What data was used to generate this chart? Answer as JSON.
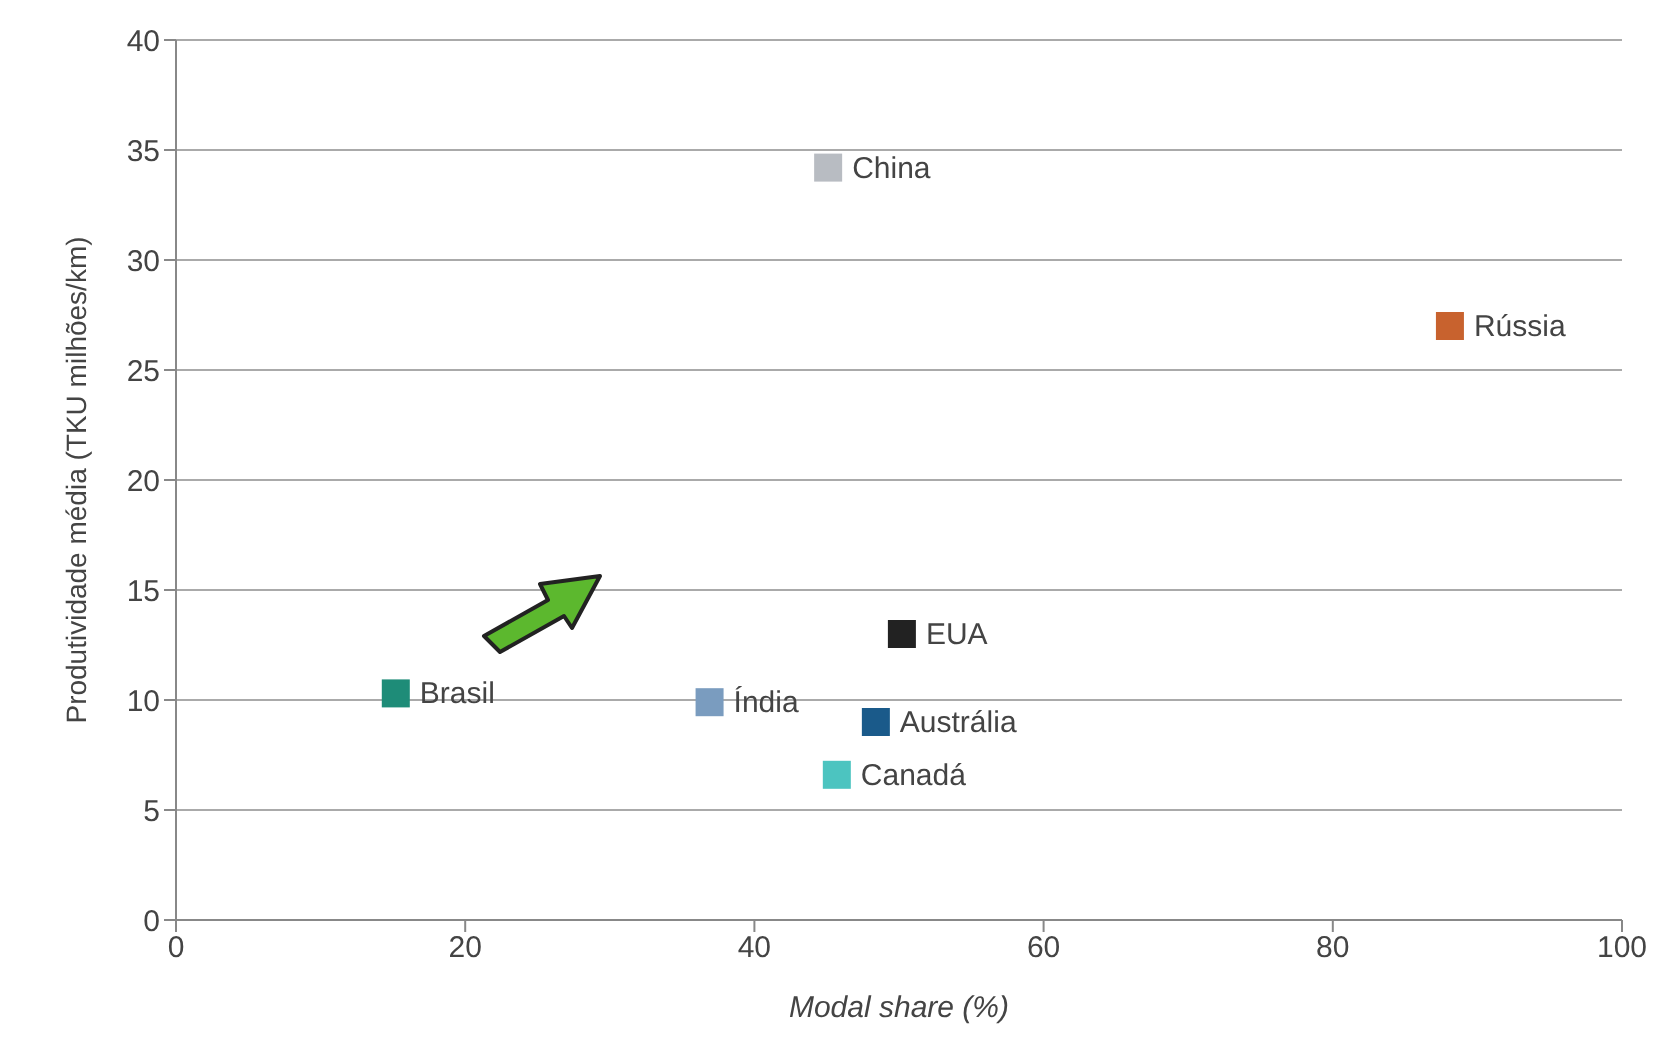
{
  "chart_data": {
    "type": "scatter",
    "xlabel": "Modal share (%)",
    "ylabel": "Produtividade média (TKU milhões/km)",
    "xlim": [
      0,
      100
    ],
    "xticks": [
      0,
      20,
      40,
      60,
      80,
      100
    ],
    "ylim": [
      0,
      40
    ],
    "yticks": [
      0,
      5,
      10,
      15,
      20,
      25,
      30,
      35,
      40
    ],
    "grid": "y",
    "legend": false,
    "marker": "square",
    "series": [
      {
        "name": "Brasil",
        "color": "#1e8c78",
        "x": [
          15.2
        ],
        "values": [
          10.3
        ]
      },
      {
        "name": "Índia",
        "color": "#7a9cbf",
        "x": [
          36.9
        ],
        "values": [
          9.9
        ]
      },
      {
        "name": "China",
        "color": "#b8bcc2",
        "x": [
          45.1
        ],
        "values": [
          34.2
        ]
      },
      {
        "name": "Rússia",
        "color": "#c8622e",
        "x": [
          88.1
        ],
        "values": [
          27
        ]
      },
      {
        "name": "EUA",
        "color": "#222222",
        "x": [
          50.2
        ],
        "values": [
          13
        ]
      },
      {
        "name": "Austrália",
        "color": "#1a5a8a",
        "x": [
          48.4
        ],
        "values": [
          9
        ]
      },
      {
        "name": "Canadá",
        "color": "#4cc4c0",
        "x": [
          45.7
        ],
        "values": [
          6.6
        ]
      }
    ]
  }
}
